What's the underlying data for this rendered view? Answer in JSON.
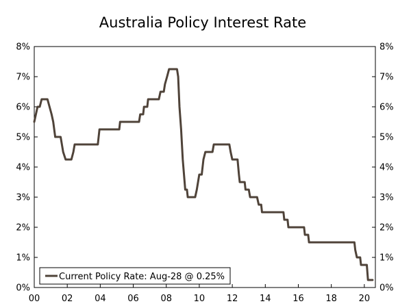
{
  "chart_data": {
    "type": "line",
    "title": "Australia Policy Interest Rate",
    "xlabel": "",
    "ylabel": "",
    "x_tick_labels": [
      "00",
      "02",
      "04",
      "06",
      "08",
      "10",
      "12",
      "14",
      "16",
      "18",
      "20"
    ],
    "x_tick_years": [
      2000,
      2002,
      2004,
      2006,
      2008,
      2010,
      2012,
      2014,
      2016,
      2018,
      2020
    ],
    "xlim": [
      2000.0,
      2020.67
    ],
    "y_tick_labels": [
      "0%",
      "1%",
      "2%",
      "3%",
      "4%",
      "5%",
      "6%",
      "7%",
      "8%"
    ],
    "y_tick_values": [
      0,
      1,
      2,
      3,
      4,
      5,
      6,
      7,
      8
    ],
    "ylim": [
      0,
      8
    ],
    "grid": false,
    "right_axis_mirror": true,
    "legend_position": "bottom-left",
    "series": [
      {
        "name": "Current Policy Rate: Aug-28 @ 0.25%",
        "color": "#4f4339",
        "points": [
          [
            2000.0,
            5.5
          ],
          [
            2000.1,
            5.75
          ],
          [
            2000.2,
            6.0
          ],
          [
            2000.33,
            6.0
          ],
          [
            2000.45,
            6.25
          ],
          [
            2000.8,
            6.25
          ],
          [
            2001.05,
            5.75
          ],
          [
            2001.15,
            5.5
          ],
          [
            2001.27,
            5.0
          ],
          [
            2001.6,
            5.0
          ],
          [
            2001.75,
            4.5
          ],
          [
            2001.9,
            4.25
          ],
          [
            2002.25,
            4.25
          ],
          [
            2002.37,
            4.5
          ],
          [
            2002.45,
            4.75
          ],
          [
            2003.85,
            4.75
          ],
          [
            2003.95,
            5.25
          ],
          [
            2005.15,
            5.25
          ],
          [
            2005.2,
            5.5
          ],
          [
            2006.35,
            5.5
          ],
          [
            2006.42,
            5.75
          ],
          [
            2006.6,
            5.75
          ],
          [
            2006.65,
            6.0
          ],
          [
            2006.85,
            6.0
          ],
          [
            2006.9,
            6.25
          ],
          [
            2007.55,
            6.25
          ],
          [
            2007.65,
            6.5
          ],
          [
            2007.85,
            6.5
          ],
          [
            2007.92,
            6.75
          ],
          [
            2008.05,
            7.0
          ],
          [
            2008.17,
            7.25
          ],
          [
            2008.65,
            7.25
          ],
          [
            2008.72,
            7.0
          ],
          [
            2008.8,
            6.0
          ],
          [
            2008.9,
            5.25
          ],
          [
            2009.0,
            4.25
          ],
          [
            2009.15,
            3.25
          ],
          [
            2009.25,
            3.25
          ],
          [
            2009.3,
            3.0
          ],
          [
            2009.75,
            3.0
          ],
          [
            2009.85,
            3.25
          ],
          [
            2010.0,
            3.75
          ],
          [
            2010.15,
            3.75
          ],
          [
            2010.25,
            4.25
          ],
          [
            2010.37,
            4.5
          ],
          [
            2010.8,
            4.5
          ],
          [
            2010.88,
            4.75
          ],
          [
            2011.82,
            4.75
          ],
          [
            2011.9,
            4.5
          ],
          [
            2012.0,
            4.25
          ],
          [
            2012.32,
            4.25
          ],
          [
            2012.4,
            3.75
          ],
          [
            2012.45,
            3.5
          ],
          [
            2012.75,
            3.5
          ],
          [
            2012.8,
            3.25
          ],
          [
            2013.0,
            3.25
          ],
          [
            2013.08,
            3.0
          ],
          [
            2013.5,
            3.0
          ],
          [
            2013.6,
            2.75
          ],
          [
            2013.75,
            2.75
          ],
          [
            2013.8,
            2.5
          ],
          [
            2015.1,
            2.5
          ],
          [
            2015.15,
            2.25
          ],
          [
            2015.35,
            2.25
          ],
          [
            2015.4,
            2.0
          ],
          [
            2016.35,
            2.0
          ],
          [
            2016.4,
            1.75
          ],
          [
            2016.6,
            1.75
          ],
          [
            2016.65,
            1.5
          ],
          [
            2019.4,
            1.5
          ],
          [
            2019.45,
            1.25
          ],
          [
            2019.55,
            1.0
          ],
          [
            2019.75,
            1.0
          ],
          [
            2019.8,
            0.75
          ],
          [
            2020.15,
            0.75
          ],
          [
            2020.22,
            0.25
          ],
          [
            2020.5,
            0.25
          ]
        ]
      }
    ]
  }
}
